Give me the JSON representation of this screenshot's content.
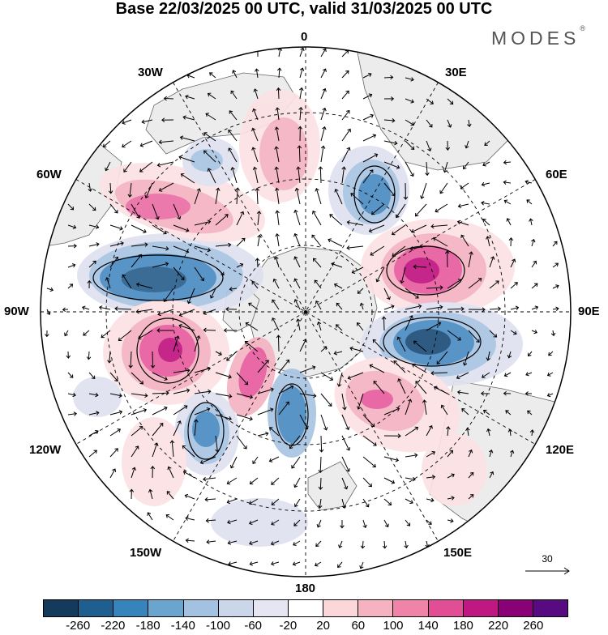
{
  "title": "Base 22/03/2025 00 UTC, valid 31/03/2025 00 UTC",
  "brand": "MODES",
  "brand_mark": "®",
  "longitude_labels": {
    "top": "0",
    "top_left": "30W",
    "top_right": "30E",
    "upper_left": "60W",
    "upper_right": "60E",
    "left": "90W",
    "right": "90E",
    "lower_left": "120W",
    "lower_right": "120E",
    "bottom_left": "150W",
    "bottom_right": "150E",
    "bottom": "180"
  },
  "vector_scale": "30",
  "colorbar": {
    "colors": [
      "#143a5c",
      "#1f5f8f",
      "#3784bc",
      "#6aa5d0",
      "#a3c2e1",
      "#ccd6ea",
      "#e6e6f2",
      "#ffffff",
      "#fbd7d9",
      "#f6b2c0",
      "#ef84a8",
      "#e24e95",
      "#c01882",
      "#8a0077",
      "#580a80"
    ],
    "ticks": [
      "-260",
      "-220",
      "-180",
      "-140",
      "-100",
      "-60",
      "-20",
      "20",
      "60",
      "100",
      "140",
      "180",
      "220",
      "260"
    ]
  },
  "anomaly_colors": {
    "neg_strong": "#1e4d78",
    "neg_mid": "#4a8cc2",
    "neg_light": "#a9c4e2",
    "neg_faint": "#dfe1f0",
    "pos_faint": "#fbe1e4",
    "pos_light": "#f5b3c2",
    "pos_mid": "#e75d9e",
    "pos_strong": "#c0147f",
    "land": "#ececec"
  }
}
